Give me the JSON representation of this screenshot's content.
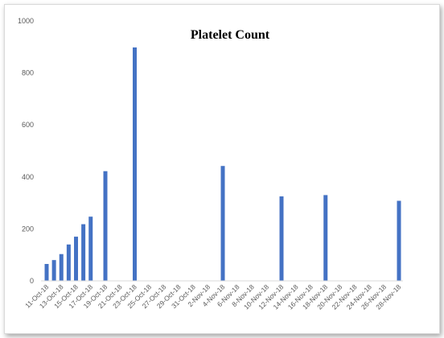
{
  "chart_data": {
    "type": "bar",
    "title": "Platelet Count",
    "xlabel": "",
    "ylabel": "",
    "ylim": [
      0,
      1000
    ],
    "yticks": [
      0,
      200,
      400,
      600,
      800,
      1000
    ],
    "grid": false,
    "bar_color": "#4472c4",
    "date_axis": {
      "start": "2018-10-11",
      "end": "2018-11-28",
      "tick_step_days": 2,
      "tick_labels": [
        "11-Oct-18",
        "13-Oct-18",
        "15-Oct-18",
        "17-Oct-18",
        "19-Oct-18",
        "21-Oct-18",
        "23-Oct-18",
        "25-Oct-18",
        "27-Oct-18",
        "29-Oct-18",
        "31-Oct-18",
        "2-Nov-18",
        "4-Nov-18",
        "6-Nov-18",
        "8-Nov-18",
        "10-Nov-18",
        "12-Nov-18",
        "14-Nov-18",
        "16-Nov-18",
        "18-Nov-18",
        "20-Nov-18",
        "22-Nov-18",
        "24-Nov-18",
        "26-Nov-18",
        "28-Nov-18"
      ]
    },
    "points": [
      {
        "date": "2018-10-11",
        "value": 65
      },
      {
        "date": "2018-10-12",
        "value": 80
      },
      {
        "date": "2018-10-13",
        "value": 103
      },
      {
        "date": "2018-10-14",
        "value": 140
      },
      {
        "date": "2018-10-15",
        "value": 170
      },
      {
        "date": "2018-10-16",
        "value": 218
      },
      {
        "date": "2018-10-17",
        "value": 247
      },
      {
        "date": "2018-10-19",
        "value": 422
      },
      {
        "date": "2018-10-23",
        "value": 898
      },
      {
        "date": "2018-11-04",
        "value": 442
      },
      {
        "date": "2018-11-12",
        "value": 325
      },
      {
        "date": "2018-11-18",
        "value": 330
      },
      {
        "date": "2018-11-28",
        "value": 308
      }
    ]
  }
}
